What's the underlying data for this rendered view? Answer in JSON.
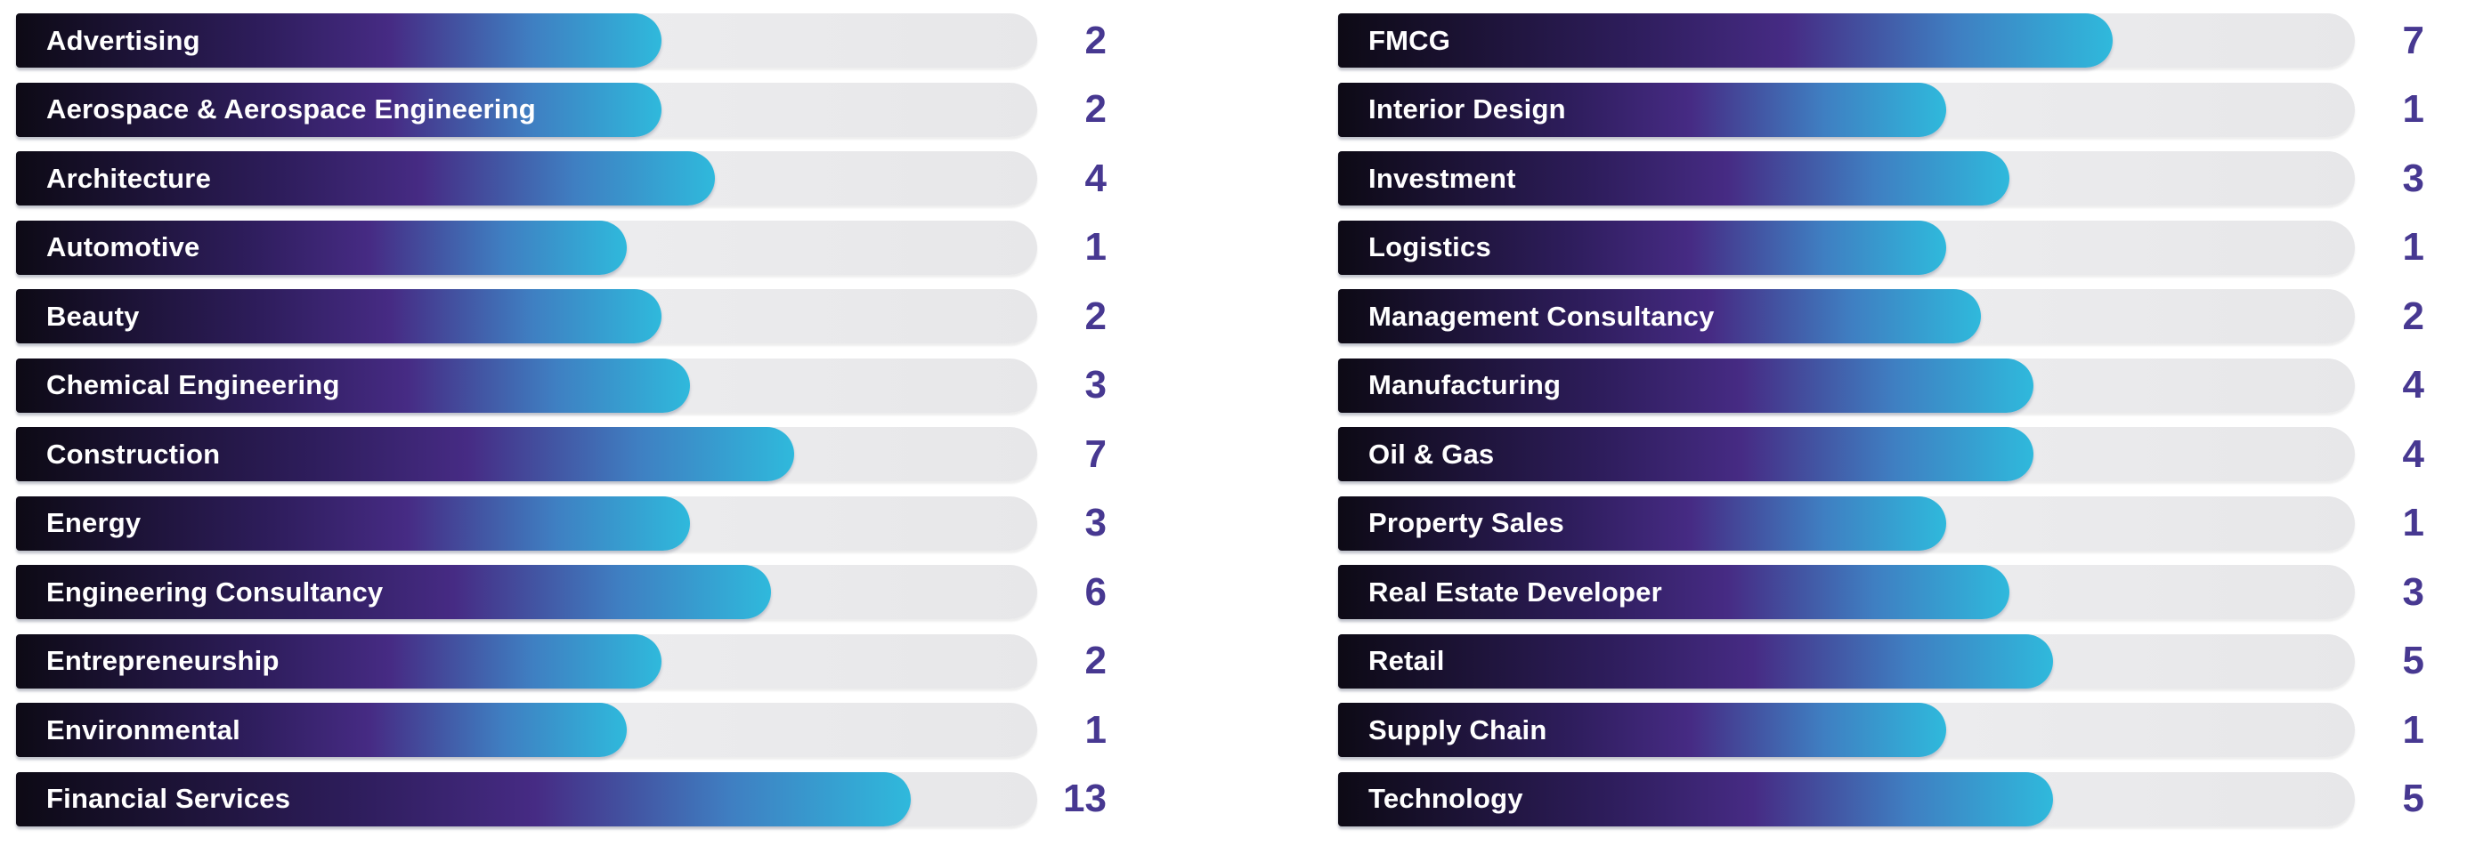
{
  "chart_data": {
    "type": "bar",
    "orientation": "horizontal",
    "title": "",
    "legend_position": "none",
    "grid": false,
    "value_range_shown": [
      1,
      13
    ],
    "panels": [
      {
        "name": "left",
        "items": [
          {
            "label": "Advertising",
            "value": 2
          },
          {
            "label": "Aerospace & Aerospace Engineering",
            "value": 2
          },
          {
            "label": "Architecture",
            "value": 4
          },
          {
            "label": "Automotive",
            "value": 1
          },
          {
            "label": "Beauty",
            "value": 2
          },
          {
            "label": "Chemical Engineering",
            "value": 3
          },
          {
            "label": "Construction",
            "value": 7
          },
          {
            "label": "Energy",
            "value": 3
          },
          {
            "label": "Engineering Consultancy",
            "value": 6
          },
          {
            "label": "Entrepreneurship",
            "value": 2
          },
          {
            "label": "Environmental",
            "value": 1
          },
          {
            "label": "Financial Services",
            "value": 13
          }
        ]
      },
      {
        "name": "right",
        "items": [
          {
            "label": "FMCG",
            "value": 7
          },
          {
            "label": "Interior Design",
            "value": 1
          },
          {
            "label": "Investment",
            "value": 3
          },
          {
            "label": "Logistics",
            "value": 1
          },
          {
            "label": "Management Consultancy",
            "value": 2
          },
          {
            "label": "Manufacturing",
            "value": 4
          },
          {
            "label": "Oil & Gas",
            "value": 4
          },
          {
            "label": "Property Sales",
            "value": 1
          },
          {
            "label": "Real Estate Developer",
            "value": 3
          },
          {
            "label": "Retail",
            "value": 5
          },
          {
            "label": "Supply Chain",
            "value": 1
          },
          {
            "label": "Technology",
            "value": 5
          }
        ]
      }
    ],
    "layout": {
      "bar_gradient": [
        "#0d0a15",
        "#2e1d5c",
        "#462b84",
        "#3f7fc2",
        "#2fb9dc"
      ],
      "track_gradient": [
        "#f3f3f5",
        "#e7e7e9"
      ],
      "value_color": "#473891",
      "label_color": "#ffffff",
      "fill_percent_by_value": {
        "1": 59.8,
        "2": 63.2,
        "3": 66.0,
        "4": 68.4,
        "5": 70.3,
        "6": 73.9,
        "7": 76.2,
        "13": 87.6
      }
    }
  }
}
